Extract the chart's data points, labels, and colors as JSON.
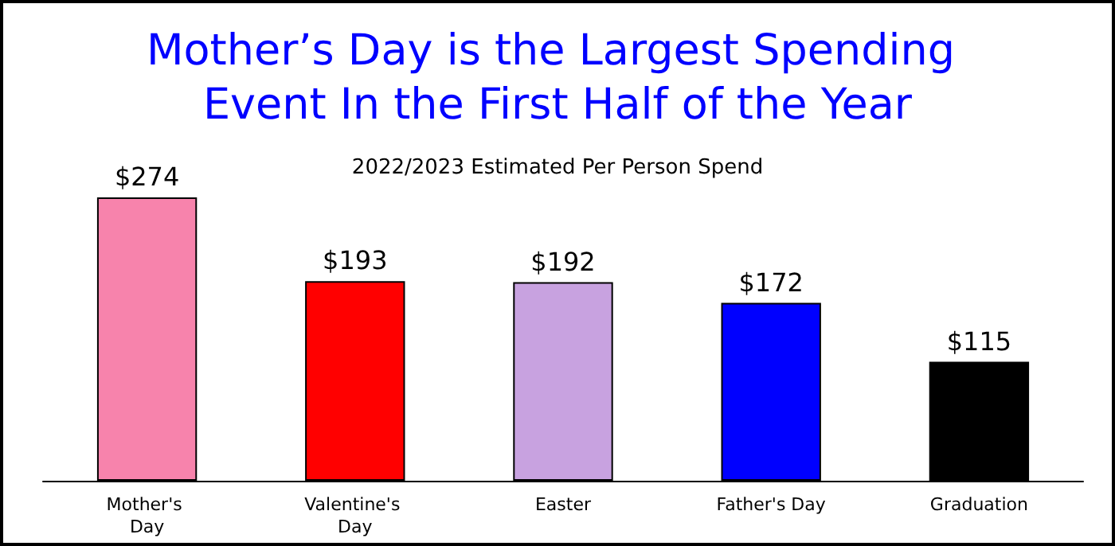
{
  "chart_data": {
    "type": "bar",
    "title": "Mother’s Day is the Largest Spending Event In the First Half of the Year",
    "subtitle": "2022/2023 Estimated Per Person Spend",
    "categories": [
      "Mother's Day",
      "Valentine's Day",
      "Easter",
      "Father's Day",
      "Graduation"
    ],
    "values": [
      274,
      193,
      192,
      172,
      115
    ],
    "colors": [
      "#f783ac",
      "#ff0000",
      "#c8a2e0",
      "#0000ff",
      "#000000"
    ],
    "value_labels": [
      "$274",
      "$193",
      "$192",
      "$172",
      "$115"
    ]
  }
}
